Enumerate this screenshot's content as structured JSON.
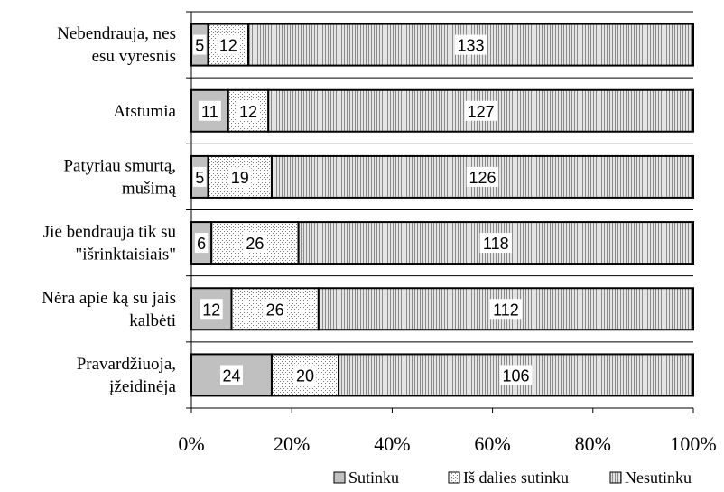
{
  "chart_data": {
    "type": "bar",
    "orientation": "horizontal",
    "stacking": "percent",
    "categories": [
      [
        "Nebendrauja, nes",
        "esu vyresnis"
      ],
      [
        "Atstumia"
      ],
      [
        "Patyriau smurtą,",
        "mušimą"
      ],
      [
        "Jie bendrauja tik su",
        "\"išrinktaisiais\""
      ],
      [
        "Nėra apie ką su jais",
        "kalbėti"
      ],
      [
        "Pravardžiuoja,",
        "įžeidinėja"
      ]
    ],
    "series": [
      {
        "name": "Sutinku",
        "values": [
          5,
          11,
          5,
          6,
          12,
          24
        ],
        "color": "#c0c0c0",
        "pattern": "solid"
      },
      {
        "name": "Iš dalies sutinku",
        "values": [
          12,
          12,
          19,
          26,
          26,
          20
        ],
        "color": "#ffffff",
        "pattern": "dots"
      },
      {
        "name": "Nesutinku",
        "values": [
          133,
          127,
          126,
          118,
          112,
          106
        ],
        "color": "#c8c8c8",
        "pattern": "vlines"
      }
    ],
    "xaxis": {
      "ticks": [
        "0%",
        "20%",
        "40%",
        "60%",
        "80%",
        "100%"
      ],
      "range": [
        0,
        100
      ]
    },
    "grid": true,
    "legend": {
      "position": "bottom-right"
    }
  }
}
